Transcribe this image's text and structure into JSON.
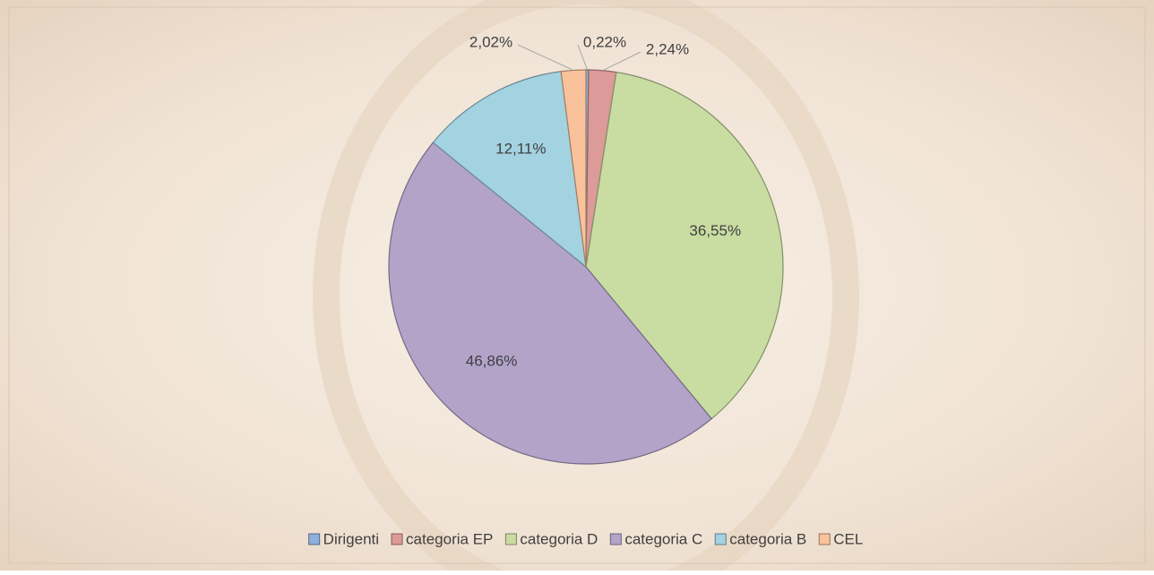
{
  "chart_data": {
    "type": "pie",
    "categories": [
      "Dirigenti",
      "categoria EP",
      "categoria D",
      "categoria C",
      "categoria B",
      "CEL"
    ],
    "values": [
      0.22,
      2.24,
      36.55,
      46.86,
      12.11,
      2.02
    ],
    "value_labels": [
      "0,22%",
      "2,24%",
      "36,55%",
      "46,86%",
      "12,11%",
      "2,02%"
    ],
    "colors": [
      "#8eaedb",
      "#dc9a98",
      "#c9dca2",
      "#b3a3c9",
      "#a3d2e0",
      "#f9c29b"
    ],
    "legend": "bottom"
  }
}
